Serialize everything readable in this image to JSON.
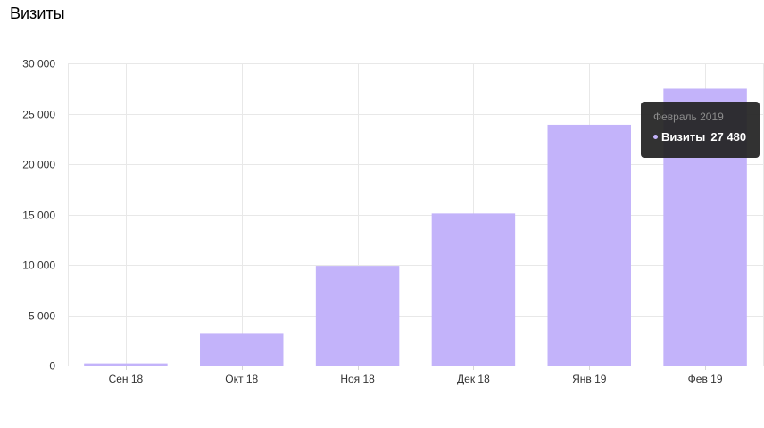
{
  "page": {
    "title": "Визиты"
  },
  "chart_data": {
    "type": "bar",
    "categories": [
      "Сен 18",
      "Окт 18",
      "Ноя 18",
      "Дек 18",
      "Янв 19",
      "Фев 19"
    ],
    "series": [
      {
        "name": "Визиты",
        "values": [
          210,
          3150,
          9900,
          15100,
          23900,
          27480
        ],
        "color": "#c3b3fa"
      }
    ],
    "y_ticks": [
      "0",
      "5 000",
      "10 000",
      "15 000",
      "20 000",
      "25 000",
      "30 000"
    ],
    "ylim": [
      0,
      30000
    ],
    "grid": true,
    "tooltip": {
      "title": "Февраль 2019",
      "series": "Визиты",
      "value": "27 480"
    }
  }
}
